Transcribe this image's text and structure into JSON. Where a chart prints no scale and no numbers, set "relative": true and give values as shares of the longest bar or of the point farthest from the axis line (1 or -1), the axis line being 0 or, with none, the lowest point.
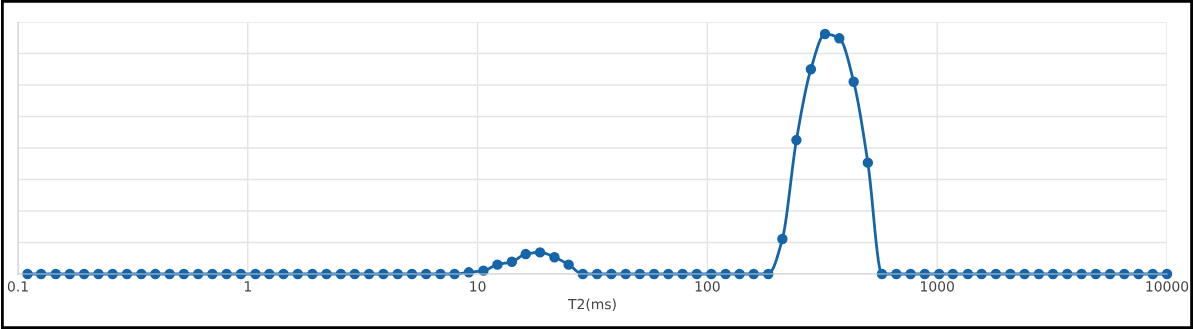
{
  "chart_data": {
    "type": "line",
    "xlabel": "T2(ms)",
    "log": "x",
    "relative": true,
    "grid": true,
    "marker": "circle",
    "line_style": "solid",
    "xlim": [
      0.1,
      10000
    ],
    "xticks": [
      0.1,
      1,
      10,
      100,
      1000,
      10000
    ],
    "x": [
      0.11,
      0.126,
      0.146,
      0.168,
      0.194,
      0.224,
      0.258,
      0.298,
      0.344,
      0.396,
      0.457,
      0.527,
      0.608,
      0.701,
      0.809,
      0.933,
      1.08,
      1.24,
      1.43,
      1.65,
      1.91,
      2.2,
      2.54,
      2.92,
      3.37,
      3.89,
      4.49,
      5.18,
      5.97,
      6.89,
      7.94,
      9.16,
      10.6,
      12.2,
      14.1,
      16.2,
      18.7,
      21.6,
      24.9,
      28.7,
      33.1,
      38.2,
      44.1,
      50.8,
      58.6,
      67.6,
      78,
      89.9,
      104,
      120,
      138,
      159,
      184,
      212,
      244,
      282,
      325,
      375,
      433,
      499,
      575,
      664,
      766,
      883,
      1020,
      1170,
      1360,
      1560,
      1800,
      2080,
      2400,
      2770,
      3190,
      3680,
      4250,
      4900,
      5650,
      6520,
      7520,
      8670,
      10000
    ],
    "series": [
      {
        "color": "#1565a8",
        "values": [
          0,
          0,
          0,
          0,
          0,
          0,
          0,
          0,
          0,
          0,
          0,
          0,
          0,
          0,
          0,
          0,
          0,
          0,
          0,
          0,
          0,
          0,
          0,
          0,
          0,
          0,
          0,
          0,
          0,
          0,
          0,
          0.007,
          0.014,
          0.039,
          0.051,
          0.083,
          0.09,
          0.07,
          0.039,
          0,
          0,
          0,
          0,
          0,
          0,
          0,
          0,
          0,
          0,
          0,
          0,
          0,
          0,
          0.146,
          0.558,
          0.853,
          1,
          0.982,
          0.801,
          0.464,
          0,
          0,
          0,
          0,
          0,
          0,
          0,
          0,
          0,
          0,
          0,
          0,
          0,
          0,
          0,
          0,
          0,
          0,
          0,
          0,
          0
        ]
      }
    ]
  }
}
